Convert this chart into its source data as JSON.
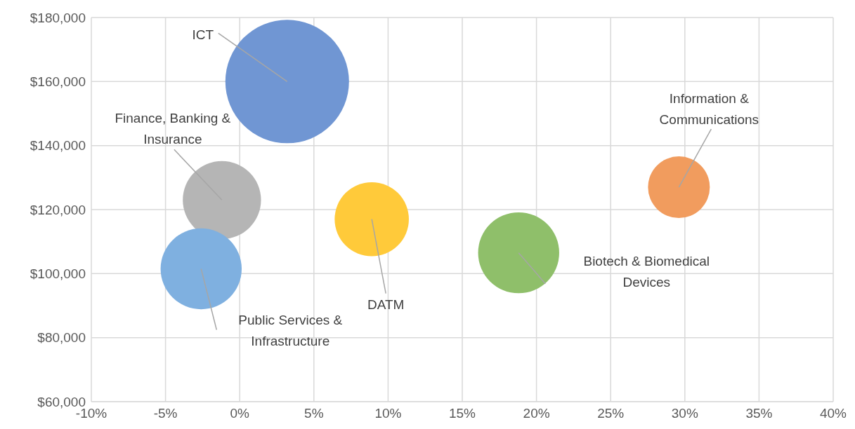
{
  "chart_data": {
    "type": "bubble",
    "series": [
      {
        "name": "ICT",
        "color": "#7096d3",
        "x": [
          3.2
        ],
        "values": [
          160000
        ],
        "sizes": [
          1
        ]
      },
      {
        "name": "Finance, Banking & Insurance",
        "color": "#b5b5b5",
        "x": [
          -1.2
        ],
        "values": [
          123000
        ],
        "sizes": [
          0.4
        ]
      },
      {
        "name": "Public Services & Infrastructure",
        "color": "#7fb0e0",
        "x": [
          -2.6
        ],
        "values": [
          101500
        ],
        "sizes": [
          0.43
        ]
      },
      {
        "name": "DATM",
        "color": "#ffca3a",
        "x": [
          8.9
        ],
        "values": [
          117000
        ],
        "sizes": [
          0.36
        ]
      },
      {
        "name": "Biotech & Biomedical Devices",
        "color": "#8fbf6a",
        "x": [
          18.8
        ],
        "values": [
          106500
        ],
        "sizes": [
          0.43
        ]
      },
      {
        "name": "Information & Communications",
        "color": "#f19c5e",
        "x": [
          29.6
        ],
        "values": [
          127000
        ],
        "sizes": [
          0.25
        ]
      }
    ],
    "xlim": [
      -10,
      40
    ],
    "xticks": [
      {
        "value": -10,
        "label": "-10%"
      },
      {
        "value": -5,
        "label": "-5%"
      },
      {
        "value": 0,
        "label": "0%"
      },
      {
        "value": 5,
        "label": "5%"
      },
      {
        "value": 10,
        "label": "10%"
      },
      {
        "value": 15,
        "label": "15%"
      },
      {
        "value": 20,
        "label": "20%"
      },
      {
        "value": 25,
        "label": "25%"
      },
      {
        "value": 30,
        "label": "30%"
      },
      {
        "value": 35,
        "label": "35%"
      },
      {
        "value": 40,
        "label": "40%"
      }
    ],
    "ylim": [
      60000,
      180000
    ],
    "yticks": [
      {
        "value": 60000,
        "label": "$60,000"
      },
      {
        "value": 80000,
        "label": "$80,000"
      },
      {
        "value": 100000,
        "label": "$100,000"
      },
      {
        "value": 120000,
        "label": "$120,000"
      },
      {
        "value": 140000,
        "label": "$140,000"
      },
      {
        "value": 160000,
        "label": "$160,000"
      },
      {
        "value": 180000,
        "label": "$180,000"
      }
    ],
    "grid": true,
    "legend": false
  }
}
